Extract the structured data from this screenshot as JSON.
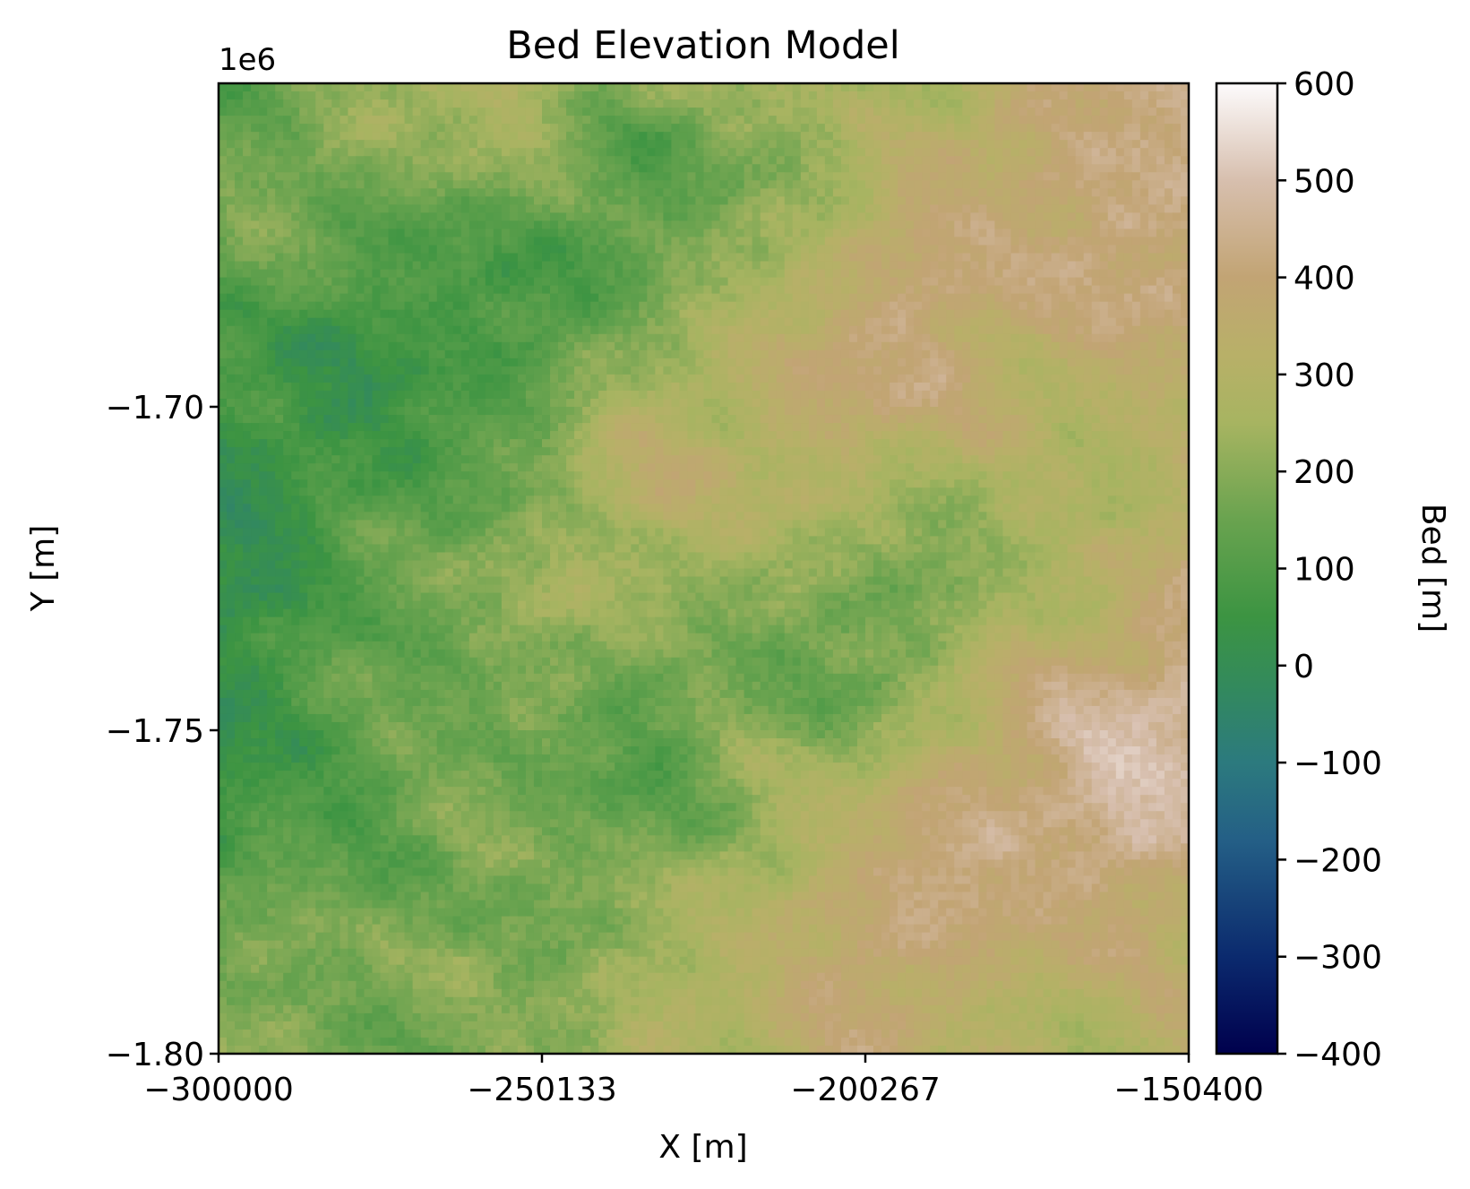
{
  "chart_data": {
    "type": "heatmap",
    "title": "Bed Elevation Model",
    "xlabel": "X [m]",
    "ylabel": "Y [m]",
    "y_offset_label": "1e6",
    "xlim": [
      -300000,
      -150400
    ],
    "ylim": [
      -1.8,
      -1.65
    ],
    "x_ticks": [
      -300000,
      -250133,
      -200267,
      -150400
    ],
    "x_tick_labels": [
      "−300000",
      "−250133",
      "−200267",
      "−150400"
    ],
    "y_ticks": [
      -1.7,
      -1.75,
      -1.8
    ],
    "y_tick_labels": [
      "−1.70",
      "−1.75",
      "−1.80"
    ],
    "colorbar": {
      "label": "Bed [m]",
      "colormap": "gist_earth",
      "range": [
        -400,
        600
      ],
      "ticks": [
        600,
        500,
        400,
        300,
        200,
        100,
        0,
        -100,
        -200,
        -300,
        -400
      ],
      "tick_labels": [
        "600",
        "500",
        "400",
        "300",
        "200",
        "100",
        "0",
        "−100",
        "−200",
        "−300",
        "−400"
      ]
    },
    "grid": false
  }
}
